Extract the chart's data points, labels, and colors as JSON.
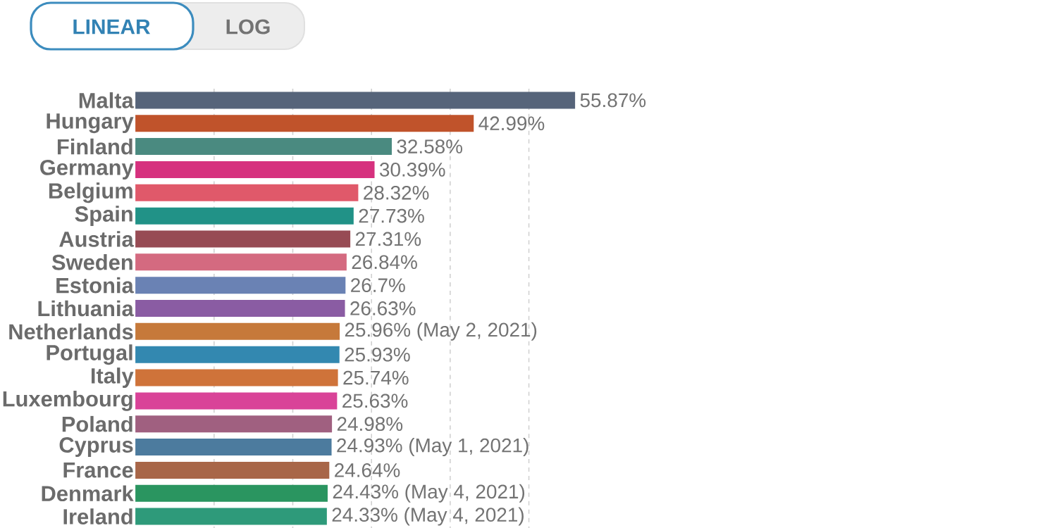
{
  "chart_data": {
    "type": "bar",
    "orientation": "horizontal",
    "categories": [
      "Malta",
      "Hungary",
      "Finland",
      "Germany",
      "Belgium",
      "Spain",
      "Austria",
      "Sweden",
      "Estonia",
      "Lithuania",
      "Netherlands",
      "Portugal",
      "Italy",
      "Luxembourg",
      "Poland",
      "Cyprus",
      "France",
      "Denmark",
      "Ireland"
    ],
    "values": [
      55.87,
      42.99,
      32.58,
      30.39,
      28.32,
      27.73,
      27.31,
      26.84,
      26.7,
      26.63,
      25.96,
      25.93,
      25.74,
      25.63,
      24.98,
      24.93,
      24.64,
      24.43,
      24.33
    ],
    "value_labels": [
      "55.87%",
      "42.99%",
      "32.58%",
      "30.39%",
      "28.32%",
      "27.73%",
      "27.31%",
      "26.84%",
      "26.7%",
      "26.63%",
      "25.96% (May 2, 2021)",
      "25.93%",
      "25.74%",
      "25.63%",
      "24.98%",
      "24.93% (May 1, 2021)",
      "24.64%",
      "24.43% (May 4, 2021)",
      "24.33% (May 4, 2021)"
    ],
    "colors": [
      "#56647a",
      "#c0532b",
      "#4a8a80",
      "#d6317e",
      "#e0596a",
      "#219287",
      "#974b54",
      "#d46a80",
      "#6a82b4",
      "#8a5ca3",
      "#c6793a",
      "#3388b0",
      "#cf733a",
      "#d94398",
      "#a06080",
      "#4c7b9e",
      "#a86648",
      "#2a9560",
      "#2e9a7a"
    ],
    "xticks": [
      {
        "value": 10,
        "label": null
      },
      {
        "value": 20,
        "label": null
      },
      {
        "value": 30,
        "label": null
      },
      {
        "value": 40,
        "label": null
      },
      {
        "value": 50,
        "label": null
      }
    ],
    "grid": "x",
    "tick_labels": "y",
    "annotations": [
      "LINEAR",
      "LOG"
    ]
  }
}
